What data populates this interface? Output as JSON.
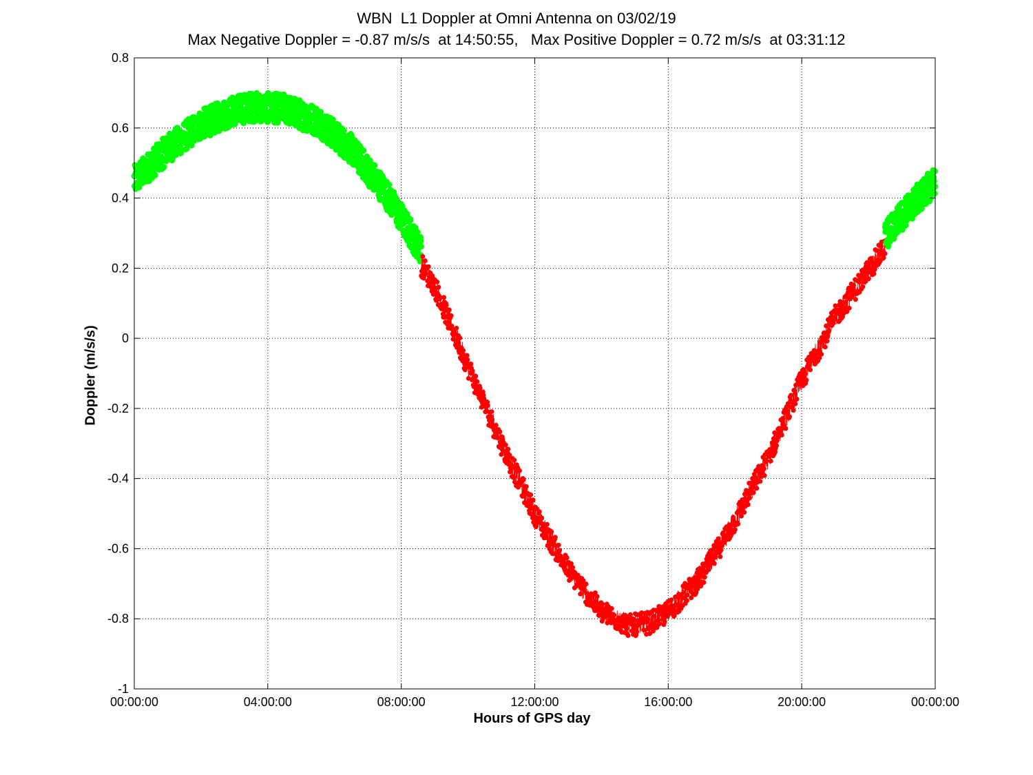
{
  "chart_data": {
    "type": "scatter",
    "title": "WBN  L1 Doppler at Omni Antenna on 03/02/19",
    "subtitle": "Max Negative Doppler = -0.87 m/s/s  at 14:50:55,   Max Positive Doppler = 0.72 m/s/s  at 03:31:12",
    "xlabel": "Hours of GPS day",
    "ylabel": "Doppler (m/s/s)",
    "xlim": [
      0,
      24
    ],
    "ylim": [
      -1,
      0.8
    ],
    "x_ticks": [
      0,
      4,
      8,
      12,
      16,
      20,
      24
    ],
    "x_tick_labels": [
      "00:00:00",
      "04:00:00",
      "08:00:00",
      "12:00:00",
      "16:00:00",
      "20:00:00",
      "00:00:00"
    ],
    "y_ticks": [
      0.8,
      0.6,
      0.4,
      0.2,
      0,
      -0.2,
      -0.4,
      -0.6,
      -0.8,
      -1
    ],
    "y_tick_labels": [
      "0.8",
      "0.6",
      "0.4",
      "0.2",
      "0",
      "-0.2",
      "-0.4",
      "-0.6",
      "-0.8",
      "-1"
    ],
    "grid": true,
    "series": [
      {
        "color": "#00ff00",
        "marker": "star",
        "x": [
          0,
          1,
          2,
          3,
          3.52,
          4.5,
          5.5,
          6.5,
          7.5,
          8.6
        ],
        "y": [
          0.45,
          0.54,
          0.61,
          0.65,
          0.66,
          0.655,
          0.62,
          0.54,
          0.42,
          0.25
        ]
      },
      {
        "color": "#ff0000",
        "marker": "line",
        "x": [
          8.6,
          9,
          10,
          11,
          12,
          13,
          14,
          14.85,
          15.5,
          16,
          17,
          18,
          19,
          20,
          21,
          22.5
        ],
        "y": [
          0.21,
          0.15,
          -0.08,
          -0.3,
          -0.5,
          -0.66,
          -0.78,
          -0.82,
          -0.81,
          -0.78,
          -0.68,
          -0.52,
          -0.34,
          -0.12,
          0.06,
          0.26
        ]
      },
      {
        "color": "#00ff00",
        "marker": "star",
        "x": [
          22.5,
          23,
          23.5,
          24
        ],
        "y": [
          0.29,
          0.35,
          0.4,
          0.45
        ]
      }
    ]
  }
}
